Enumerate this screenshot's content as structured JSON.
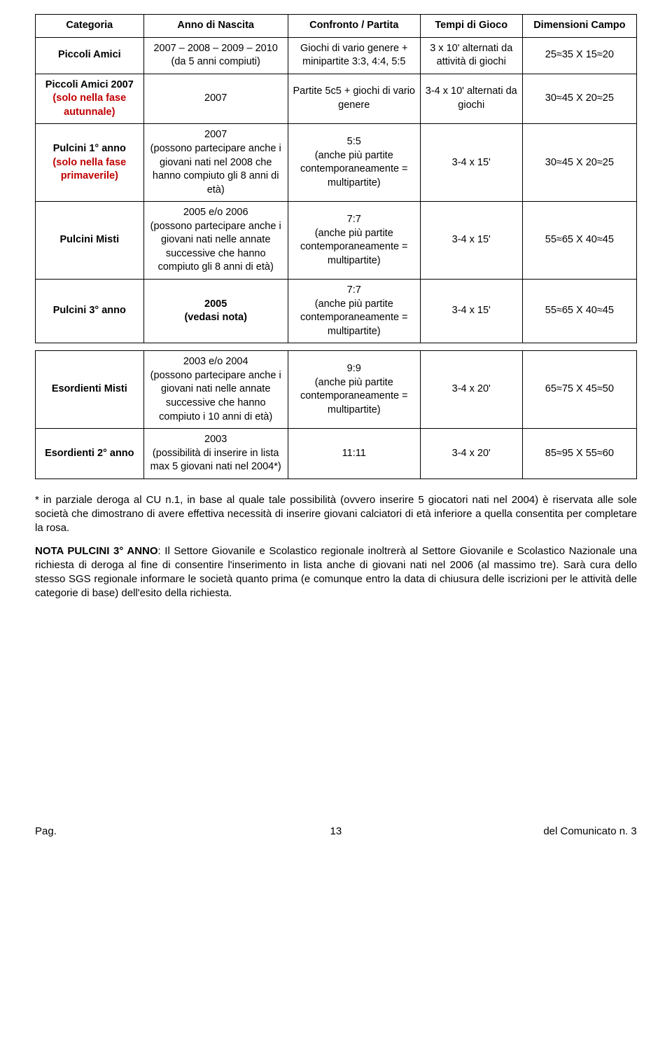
{
  "table1": {
    "headers": [
      "Categoria",
      "Anno di Nascita",
      "Confronto / Partita",
      "Tempi di Gioco",
      "Dimensioni Campo"
    ],
    "rows": [
      {
        "cat": "Piccoli Amici",
        "anno": "2007 – 2008 – 2009 – 2010\n(da 5 anni compiuti)",
        "conf": "Giochi di vario genere + minipartite 3:3, 4:4, 5:5",
        "tempi": "3 x 10' alternati da attività di giochi",
        "dim": "25≈35 X 15≈20"
      },
      {
        "cat": "Piccoli Amici 2007\n(solo nella fase autunnale)",
        "cat_red": true,
        "anno": "2007",
        "conf": "Partite 5c5 + giochi di vario genere",
        "tempi": "3-4 x 10' alternati da giochi",
        "dim": "30≈45 X 20≈25"
      },
      {
        "cat": "Pulcini 1° anno\n(solo nella fase primaverile)",
        "cat_red": true,
        "anno": "2007\n(possono partecipare anche i giovani nati nel 2008 che hanno compiuto gli 8 anni di età)",
        "conf": "5:5\n(anche più partite contemporaneamente = multipartite)",
        "tempi": "3-4 x 15'",
        "dim": "30≈45 X 20≈25"
      },
      {
        "cat": "Pulcini Misti",
        "anno": "2005 e/o 2006\n(possono partecipare anche i giovani nati nelle annate successive che hanno compiuto gli 8 anni di età)",
        "conf": "7:7\n(anche più partite contemporaneamente = multipartite)",
        "tempi": "3-4 x 15'",
        "dim": "55≈65 X 40≈45"
      },
      {
        "cat": "Pulcini 3° anno",
        "anno": "2005\n(vedasi nota)",
        "anno_bold": true,
        "conf": "7:7\n(anche più partite contemporaneamente = multipartite)",
        "tempi": "3-4 x 15'",
        "dim": "55≈65 X 40≈45"
      }
    ]
  },
  "table2": {
    "rows": [
      {
        "cat": "Esordienti Misti",
        "anno": "2003 e/o 2004\n(possono partecipare anche i giovani nati nelle annate successive che hanno compiuto i 10 anni di età)",
        "conf": "9:9\n(anche più partite contemporaneamente = multipartite)",
        "tempi": "3-4 x 20'",
        "dim": "65≈75 X 45≈50"
      },
      {
        "cat": "Esordienti 2° anno",
        "anno": "2003\n(possibilità di inserire in lista max 5 giovani nati nel 2004*)",
        "conf": "11:11",
        "tempi": "3-4 x 20'",
        "dim": "85≈95 X 55≈60"
      }
    ]
  },
  "notes": {
    "p1": "* in parziale deroga al CU n.1, in base al quale tale possibilità (ovvero inserire 5 giocatori nati nel 2004) è riservata alle sole società che dimostrano di avere effettiva necessità di inserire giovani calciatori di età inferiore a quella consentita per completare la rosa.",
    "p2_label": "NOTA PULCINI 3° ANNO",
    "p2": ": Il Settore Giovanile e Scolastico regionale inoltrerà al Settore Giovanile e Scolastico Nazionale una richiesta di deroga al fine di consentire l'inserimento in lista anche di giovani nati nel 2006 (al massimo tre). Sarà cura dello stesso SGS regionale informare le società quanto prima (e comunque entro la data di chiusura delle iscrizioni per le attività delle categorie di base) dell'esito della richiesta."
  },
  "footer": {
    "pag": "Pag.",
    "num": "13",
    "com": "del Comunicato n. 3"
  }
}
